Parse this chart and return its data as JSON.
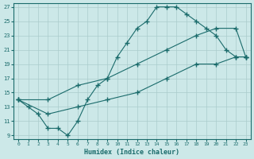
{
  "xlabel": "Humidex (Indice chaleur)",
  "bg_color": "#cce8e8",
  "grid_color": "#aacccc",
  "line_color": "#1a6b6b",
  "xlim": [
    -0.5,
    23.5
  ],
  "ylim": [
    8.5,
    27.5
  ],
  "xticks": [
    0,
    1,
    2,
    3,
    4,
    5,
    6,
    7,
    8,
    9,
    10,
    11,
    12,
    13,
    14,
    15,
    16,
    17,
    18,
    19,
    20,
    21,
    22,
    23
  ],
  "yticks": [
    9,
    11,
    13,
    15,
    17,
    19,
    21,
    23,
    25,
    27
  ],
  "line1_x": [
    0,
    1,
    2,
    3,
    4,
    5,
    6,
    7,
    8,
    9,
    10,
    11,
    12,
    13,
    14,
    15,
    16,
    17,
    18,
    19,
    20,
    21,
    22,
    23
  ],
  "line1_y": [
    14,
    13,
    12,
    10,
    10,
    9,
    11,
    14,
    16,
    17,
    20,
    22,
    24,
    25,
    27,
    27,
    27,
    26,
    25,
    24,
    23,
    21,
    20,
    20
  ],
  "line2_x": [
    0,
    3,
    6,
    9,
    12,
    15,
    18,
    20,
    22,
    23
  ],
  "line2_y": [
    14,
    14,
    16,
    17,
    19,
    21,
    23,
    24,
    24,
    20
  ],
  "line3_x": [
    0,
    3,
    6,
    9,
    12,
    15,
    18,
    20,
    22,
    23
  ],
  "line3_y": [
    14,
    12,
    13,
    14,
    15,
    17,
    19,
    19,
    20,
    20
  ]
}
